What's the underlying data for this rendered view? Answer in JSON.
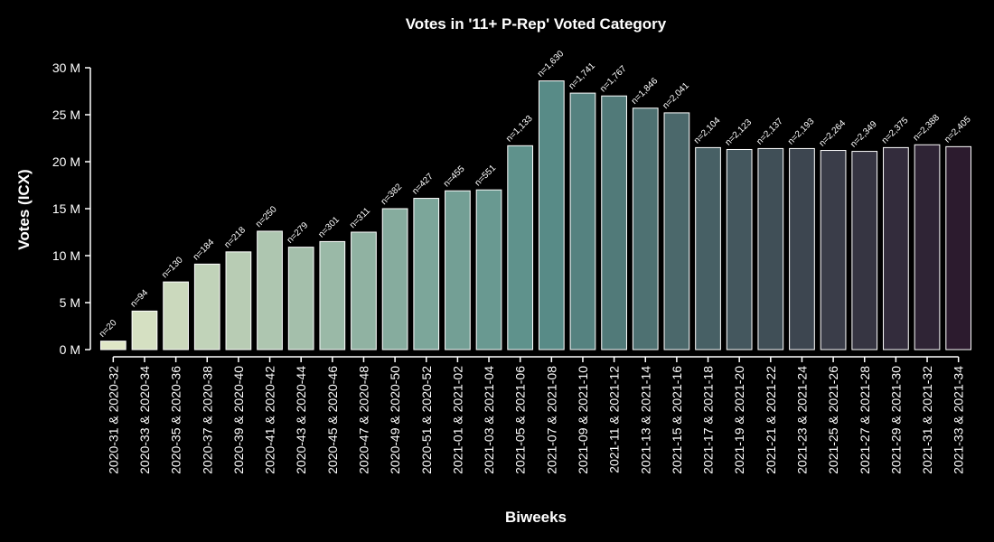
{
  "chart_data": {
    "type": "bar",
    "title": "Votes in '11+ P-Rep' Voted Category",
    "xlabel": "Biweeks",
    "ylabel": "Votes (ICX)",
    "ylim": [
      0,
      30000000
    ],
    "yticks": [
      {
        "value": 0,
        "label": "0 M"
      },
      {
        "value": 5000000,
        "label": "5 M"
      },
      {
        "value": 10000000,
        "label": "10 M"
      },
      {
        "value": 15000000,
        "label": "15 M"
      },
      {
        "value": 20000000,
        "label": "20 M"
      },
      {
        "value": 25000000,
        "label": "25 M"
      },
      {
        "value": 30000000,
        "label": "30 M"
      }
    ],
    "grid": false,
    "categories": [
      "2020-31 & 2020-32",
      "2020-33 & 2020-34",
      "2020-35 & 2020-36",
      "2020-37 & 2020-38",
      "2020-39 & 2020-40",
      "2020-41 & 2020-42",
      "2020-43 & 2020-44",
      "2020-45 & 2020-46",
      "2020-47 & 2020-48",
      "2020-49 & 2020-50",
      "2020-51 & 2020-52",
      "2021-01 & 2021-02",
      "2021-03 & 2021-04",
      "2021-05 & 2021-06",
      "2021-07 & 2021-08",
      "2021-09 & 2021-10",
      "2021-11 & 2021-12",
      "2021-13 & 2021-14",
      "2021-15 & 2021-16",
      "2021-17 & 2021-18",
      "2021-19 & 2021-20",
      "2021-21 & 2021-22",
      "2021-23 & 2021-24",
      "2021-25 & 2021-26",
      "2021-27 & 2021-28",
      "2021-29 & 2021-30",
      "2021-31 & 2021-32",
      "2021-33 & 2021-34"
    ],
    "values": [
      900000,
      4100000,
      7200000,
      9100000,
      10400000,
      12600000,
      10900000,
      11500000,
      12500000,
      15000000,
      16100000,
      16900000,
      17000000,
      21700000,
      28600000,
      27300000,
      27000000,
      25700000,
      25200000,
      21500000,
      21300000,
      21400000,
      21400000,
      21200000,
      21100000,
      21500000,
      21800000,
      21600000
    ],
    "bar_labels": [
      "n=20",
      "n=94",
      "n=130",
      "n=184",
      "n=218",
      "n=250",
      "n=279",
      "n=301",
      "n=311",
      "n=382",
      "n=427",
      "n=455",
      "n=551",
      "n=1,133",
      "n=1,630",
      "n=1,741",
      "n=1,767",
      "n=1,846",
      "n=2,041",
      "n=2,104",
      "n=2,123",
      "n=2,137",
      "n=2,193",
      "n=2,264",
      "n=2,349",
      "n=2,375",
      "n=2,388",
      "n=2,405"
    ],
    "colors": {
      "background": "#000000",
      "text": "#ffffff",
      "bar_edge": "#ffffff",
      "palette_start": "#dfe6c6",
      "palette_mid": "#5a8f8a",
      "palette_end": "#2c1b2e"
    }
  }
}
